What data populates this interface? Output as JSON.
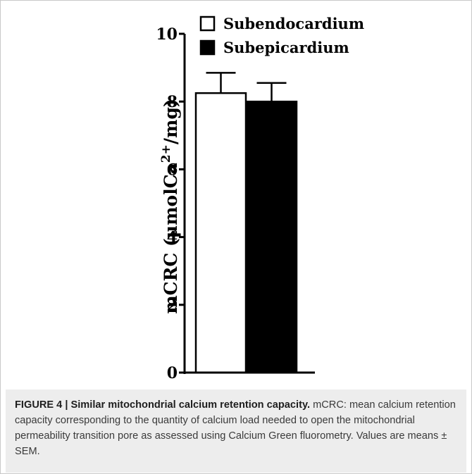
{
  "chart_data": {
    "type": "bar",
    "categories": [
      "Subendocardium",
      "Subepicardium"
    ],
    "values": [
      8.25,
      8.0
    ],
    "errors": [
      0.6,
      0.55
    ],
    "ylabel_parts": {
      "main": "mCRC (μmolCa",
      "superscript": "2+",
      "tail": "/mg)"
    },
    "ylim": [
      0,
      10
    ],
    "yticks": [
      "0",
      "2",
      "4",
      "6",
      "8",
      "10"
    ],
    "legend": [
      {
        "label": "Subendocardium",
        "fill": "#ffffff"
      },
      {
        "label": "Subepicardium",
        "fill": "#000000"
      }
    ],
    "legend_position": "top-right",
    "grid": false
  },
  "caption": {
    "label": "FIGURE 4 | ",
    "title": "Similar mitochondrial calcium retention capacity.",
    "body": " mCRC: mean calcium retention capacity corresponding to the quantity of calcium load needed to open the mitochondrial permeability transition pore as assessed using Calcium Green fluorometry. Values are means ± SEM."
  }
}
